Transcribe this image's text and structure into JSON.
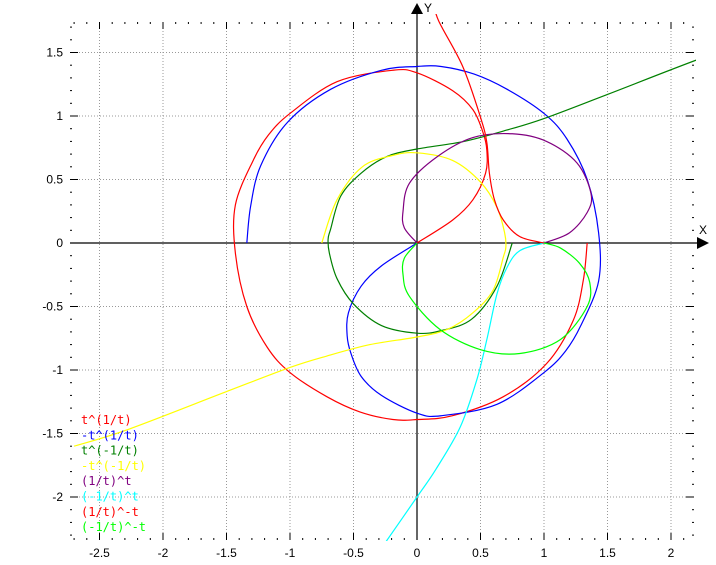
{
  "chart_data": {
    "type": "line",
    "xlabel": "X",
    "ylabel": "Y",
    "xlim": [
      -2.75,
      2.2
    ],
    "ylim": [
      -2.35,
      1.75
    ],
    "x_ticks": [
      "-2.5",
      "-2",
      "-1.5",
      "-1",
      "-0.5",
      "0",
      "0.5",
      "1",
      "1.5",
      "2"
    ],
    "y_ticks": [
      "-2",
      "-1.5",
      "-1",
      "-0.5",
      "0",
      "0.5",
      "1",
      "1.5"
    ],
    "grid": true,
    "legend_position": "bottom-left",
    "series": [
      {
        "name": "t^(1/t)",
        "color": "#ff0000",
        "points": [
          [
            1.34,
            0
          ],
          [
            1.31,
            -0.29
          ],
          [
            1.23,
            -0.61
          ],
          [
            1.02,
            -0.95
          ],
          [
            0.68,
            -1.21
          ],
          [
            0.28,
            -1.36
          ],
          [
            0,
            -1.39
          ],
          [
            -0.19,
            -1.39
          ],
          [
            -0.45,
            -1.33
          ],
          [
            -0.71,
            -1.21
          ],
          [
            -1.0,
            -1.02
          ],
          [
            -1.18,
            -0.82
          ],
          [
            -1.34,
            -0.5
          ],
          [
            -1.43,
            -0.08
          ],
          [
            -1.43,
            0.3
          ],
          [
            -1.29,
            0.65
          ],
          [
            -1.17,
            0.85
          ],
          [
            -1.0,
            1.02
          ],
          [
            -0.63,
            1.27
          ],
          [
            -0.19,
            1.36
          ],
          [
            0,
            1.34
          ],
          [
            0.28,
            1.2
          ],
          [
            0.44,
            1.05
          ],
          [
            0.52,
            0.87
          ],
          [
            0.55,
            0.73
          ],
          [
            0.54,
            0.55
          ],
          [
            0.44,
            0.34
          ],
          [
            0.28,
            0.18
          ],
          [
            0,
            0
          ]
        ]
      },
      {
        "name": "-t^(1/t)",
        "color": "#0000ff",
        "points": [
          [
            -1.34,
            0
          ],
          [
            -1.31,
            0.29
          ],
          [
            -1.23,
            0.61
          ],
          [
            -1.02,
            0.95
          ],
          [
            -0.68,
            1.21
          ],
          [
            -0.28,
            1.36
          ],
          [
            0,
            1.39
          ],
          [
            0.19,
            1.39
          ],
          [
            0.45,
            1.33
          ],
          [
            0.71,
            1.21
          ],
          [
            1.0,
            1.02
          ],
          [
            1.18,
            0.82
          ],
          [
            1.34,
            0.5
          ],
          [
            1.43,
            0.08
          ],
          [
            1.43,
            -0.3
          ],
          [
            1.29,
            -0.65
          ],
          [
            1.17,
            -0.85
          ],
          [
            1.0,
            -1.02
          ],
          [
            0.63,
            -1.27
          ],
          [
            0.19,
            -1.36
          ],
          [
            0,
            -1.34
          ],
          [
            -0.28,
            -1.2
          ],
          [
            -0.44,
            -1.05
          ],
          [
            -0.52,
            -0.87
          ],
          [
            -0.55,
            -0.73
          ],
          [
            -0.54,
            -0.55
          ],
          [
            -0.44,
            -0.34
          ],
          [
            -0.28,
            -0.18
          ],
          [
            0,
            0
          ]
        ]
      },
      {
        "name": "t^(-1/t)",
        "color": "#008000",
        "points": [
          [
            0.75,
            0
          ],
          [
            0.63,
            -0.34
          ],
          [
            0.43,
            -0.6
          ],
          [
            0.19,
            -0.69
          ],
          [
            0,
            -0.71
          ],
          [
            -0.28,
            -0.65
          ],
          [
            -0.5,
            -0.48
          ],
          [
            -0.63,
            -0.28
          ],
          [
            -0.69,
            -0.08
          ],
          [
            -0.7,
            0.03
          ],
          [
            -0.68,
            0.11
          ],
          [
            -0.6,
            0.37
          ],
          [
            -0.44,
            0.55
          ],
          [
            -0.24,
            0.68
          ],
          [
            0,
            0.74
          ],
          [
            0.37,
            0.8
          ],
          [
            0.71,
            0.89
          ],
          [
            1.0,
            0.98
          ],
          [
            1.5,
            1.17
          ],
          [
            2.28,
            1.47
          ],
          [
            2.7,
            1.6
          ]
        ]
      },
      {
        "name": "-t^(-1/t)",
        "color": "#ffff00",
        "points": [
          [
            -0.75,
            0
          ],
          [
            -0.63,
            0.34
          ],
          [
            -0.43,
            0.6
          ],
          [
            -0.19,
            0.69
          ],
          [
            0,
            0.71
          ],
          [
            0.28,
            0.65
          ],
          [
            0.5,
            0.48
          ],
          [
            0.63,
            0.28
          ],
          [
            0.69,
            0.08
          ],
          [
            0.7,
            -0.03
          ],
          [
            0.68,
            -0.11
          ],
          [
            0.6,
            -0.37
          ],
          [
            0.44,
            -0.55
          ],
          [
            0.24,
            -0.68
          ],
          [
            0,
            -0.74
          ],
          [
            -0.37,
            -0.8
          ],
          [
            -0.71,
            -0.89
          ],
          [
            -1.0,
            -0.98
          ],
          [
            -1.5,
            -1.17
          ],
          [
            -2.28,
            -1.47
          ],
          [
            -2.7,
            -1.6
          ]
        ]
      },
      {
        "name": "(1/t)^t",
        "color": "#800080",
        "points": [
          [
            0,
            0
          ],
          [
            -0.1,
            0.12
          ],
          [
            -0.11,
            0.25
          ],
          [
            -0.06,
            0.47
          ],
          [
            0.16,
            0.68
          ],
          [
            0.44,
            0.83
          ],
          [
            0.75,
            0.86
          ],
          [
            1.02,
            0.8
          ],
          [
            1.26,
            0.63
          ],
          [
            1.37,
            0.39
          ],
          [
            1.34,
            0.24
          ],
          [
            1.2,
            0.08
          ],
          [
            1.0,
            0
          ]
        ]
      },
      {
        "name": "(-1/t)^t",
        "color": "#00ffff",
        "points": [
          [
            1.0,
            0
          ],
          [
            0.81,
            -0.06
          ],
          [
            0.71,
            -0.19
          ],
          [
            0.63,
            -0.4
          ],
          [
            0.55,
            -0.76
          ],
          [
            0.47,
            -1.08
          ],
          [
            0.34,
            -1.45
          ],
          [
            0.15,
            -1.78
          ],
          [
            0,
            -2.0
          ],
          [
            -0.25,
            -2.36
          ]
        ]
      },
      {
        "name": "(1/t)^-t",
        "color": "#ff0000",
        "points": [
          [
            0.13,
            1.9
          ],
          [
            0.17,
            1.75
          ],
          [
            0.36,
            1.39
          ],
          [
            0.5,
            0.99
          ],
          [
            0.55,
            0.79
          ],
          [
            0.57,
            0.55
          ],
          [
            0.61,
            0.34
          ],
          [
            0.68,
            0.18
          ],
          [
            0.81,
            0.05
          ],
          [
            1.0,
            0
          ]
        ]
      },
      {
        "name": "(-1/t)^-t",
        "color": "#00ff00",
        "points": [
          [
            0,
            0
          ],
          [
            -0.1,
            -0.12
          ],
          [
            -0.11,
            -0.25
          ],
          [
            -0.06,
            -0.42
          ],
          [
            0.18,
            -0.68
          ],
          [
            0.5,
            -0.84
          ],
          [
            0.81,
            -0.87
          ],
          [
            1.13,
            -0.76
          ],
          [
            1.34,
            -0.5
          ],
          [
            1.36,
            -0.31
          ],
          [
            1.28,
            -0.16
          ],
          [
            1.13,
            -0.04
          ],
          [
            1.0,
            0
          ]
        ]
      }
    ]
  }
}
